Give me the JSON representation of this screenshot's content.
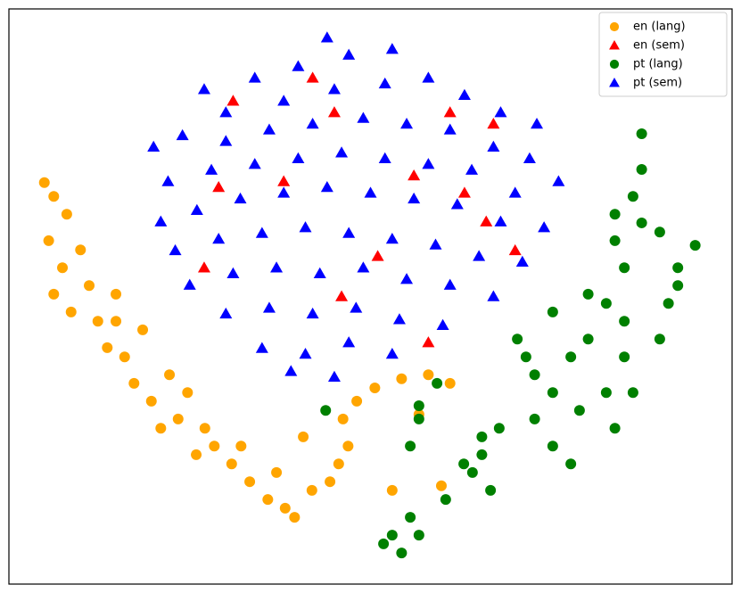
{
  "chart_data": {
    "type": "scatter",
    "xlim": [
      0,
      100
    ],
    "ylim": [
      0,
      100
    ],
    "legend": "upper right",
    "series": [
      {
        "name": "en (lang)",
        "color": "#ffa500",
        "marker": "o",
        "x": [
          4.9,
          6.2,
          8.0,
          5.5,
          7.4,
          9.9,
          11.1,
          8.6,
          12.3,
          14.8,
          13.6,
          16.0,
          18.5,
          17.3,
          19.7,
          22.2,
          23.4,
          24.7,
          27.1,
          28.4,
          25.9,
          30.8,
          33.3,
          32.1,
          35.8,
          38.2,
          39.5,
          37.0,
          41.9,
          44.4,
          45.6,
          46.9,
          46.2,
          48.1,
          50.6,
          54.3,
          58.0,
          61.0,
          56.7,
          53.0,
          59.8,
          40.7,
          21.0,
          6.2,
          14.8
        ],
        "y": [
          69.8,
          67.4,
          64.3,
          59.7,
          55.0,
          58.1,
          51.9,
          47.3,
          45.7,
          50.4,
          41.1,
          39.5,
          44.2,
          34.9,
          31.8,
          36.4,
          28.7,
          33.3,
          27.1,
          24.0,
          22.5,
          20.9,
          17.8,
          24.0,
          14.7,
          13.2,
          11.6,
          19.4,
          16.3,
          17.8,
          20.9,
          24.0,
          28.7,
          31.8,
          34.1,
          35.7,
          36.4,
          34.9,
          29.5,
          16.3,
          17.1,
          25.6,
          27.1,
          50.4,
          45.7
        ]
      },
      {
        "name": "en (sem)",
        "color": "#ff0000",
        "marker": "^",
        "x": [
          31,
          45,
          61,
          67,
          38,
          56,
          66,
          29,
          51,
          70,
          46,
          58,
          27,
          63,
          42
        ],
        "y": [
          84,
          82,
          82,
          80,
          70,
          71,
          63,
          69,
          57,
          58,
          50,
          42,
          55,
          68,
          88
        ]
      },
      {
        "name": "pt (lang)",
        "color": "#008000",
        "marker": "o",
        "x": [
          53.0,
          55.5,
          60.4,
          62.9,
          65.4,
          67.8,
          72.7,
          75.2,
          77.7,
          80.1,
          82.6,
          85.1,
          87.5,
          86.3,
          87.5,
          87.5,
          90.0,
          92.5,
          91.2,
          90.0,
          85.1,
          82.6,
          78.9,
          75.2,
          72.7,
          71.5,
          70.3,
          75.2,
          80.1,
          83.8,
          94.9,
          83.8,
          56.7,
          51.8,
          54.3,
          56.7,
          55.5,
          56.7,
          59.2,
          64.1,
          66.6,
          65.4,
          77.7,
          83.8,
          86.3,
          43.8,
          92.5,
          85.1
        ],
        "y": [
          8.5,
          11.6,
          14.7,
          20.9,
          25.6,
          27.1,
          28.7,
          33.3,
          39.5,
          42.6,
          48.8,
          55.0,
          62.8,
          67.4,
          72.1,
          78.3,
          61.2,
          55.0,
          48.8,
          42.6,
          39.5,
          33.3,
          30.2,
          24.0,
          36.4,
          39.5,
          42.6,
          47.3,
          50.4,
          59.7,
          58.9,
          64.3,
          8.5,
          7.0,
          5.4,
          28.7,
          24.0,
          31.0,
          34.9,
          19.4,
          16.3,
          22.5,
          20.9,
          27.1,
          33.3,
          30.2,
          51.9,
          45.7
        ]
      },
      {
        "name": "pt (sem)",
        "color": "#0000ff",
        "marker": "^",
        "x": [
          44,
          40,
          47,
          53,
          34,
          27,
          30,
          38,
          45,
          52,
          58,
          63,
          68,
          73,
          20,
          24,
          30,
          36,
          42,
          49,
          55,
          61,
          67,
          72,
          76,
          22,
          28,
          34,
          40,
          46,
          52,
          58,
          64,
          70,
          21,
          26,
          32,
          38,
          44,
          50,
          56,
          62,
          68,
          74,
          23,
          29,
          35,
          41,
          47,
          53,
          59,
          65,
          71,
          25,
          31,
          37,
          43,
          49,
          55,
          61,
          67,
          30,
          36,
          42,
          48,
          54,
          60,
          35,
          41,
          47,
          53,
          39,
          45
        ],
        "y": [
          95,
          90,
          92,
          93,
          88,
          86,
          82,
          84,
          86,
          87,
          88,
          85,
          82,
          80,
          76,
          78,
          77,
          79,
          80,
          81,
          80,
          79,
          76,
          74,
          70,
          70,
          72,
          73,
          74,
          75,
          74,
          73,
          72,
          68,
          63,
          65,
          67,
          68,
          69,
          68,
          67,
          66,
          63,
          62,
          58,
          60,
          61,
          62,
          61,
          60,
          59,
          57,
          56,
          52,
          54,
          55,
          54,
          55,
          53,
          52,
          50,
          47,
          48,
          47,
          48,
          46,
          45,
          41,
          40,
          42,
          40,
          37,
          36
        ]
      }
    ]
  }
}
